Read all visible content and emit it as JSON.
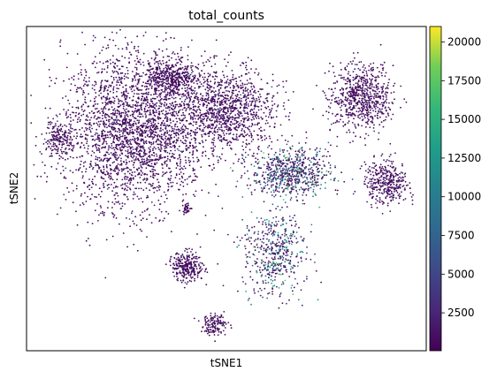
{
  "chart_data": {
    "type": "scatter",
    "title": "total_counts",
    "xlabel": "tSNE1",
    "ylabel": "tSNE2",
    "grid": false,
    "colorbar": {
      "label": "",
      "colormap": "viridis",
      "range": [
        50,
        21000
      ],
      "ticks": [
        "2500",
        "5000",
        "7500",
        "10000",
        "12500",
        "15000",
        "17500",
        "20000"
      ]
    },
    "clusters": [
      {
        "id": "left-large-mass",
        "cx": 0.27,
        "cy": 0.68,
        "rx": 0.16,
        "ry": 0.22,
        "n": 2600,
        "level": "low"
      },
      {
        "id": "left-upper-blob",
        "cx": 0.36,
        "cy": 0.84,
        "rx": 0.06,
        "ry": 0.05,
        "n": 420,
        "level": "low"
      },
      {
        "id": "left-far-blob",
        "cx": 0.08,
        "cy": 0.65,
        "rx": 0.03,
        "ry": 0.05,
        "n": 180,
        "level": "low"
      },
      {
        "id": "top-right-left-mass",
        "cx": 0.5,
        "cy": 0.74,
        "rx": 0.11,
        "ry": 0.12,
        "n": 1100,
        "level": "low"
      },
      {
        "id": "right-top-blob",
        "cx": 0.84,
        "cy": 0.78,
        "rx": 0.07,
        "ry": 0.09,
        "n": 700,
        "level": "low"
      },
      {
        "id": "right-mid-blob",
        "cx": 0.9,
        "cy": 0.52,
        "rx": 0.05,
        "ry": 0.06,
        "n": 380,
        "level": "low"
      },
      {
        "id": "center-mixed",
        "cx": 0.66,
        "cy": 0.55,
        "rx": 0.09,
        "ry": 0.07,
        "n": 700,
        "level": "mixed"
      },
      {
        "id": "center-low-tail",
        "cx": 0.62,
        "cy": 0.3,
        "rx": 0.07,
        "ry": 0.12,
        "n": 500,
        "level": "mixed"
      },
      {
        "id": "bottom-left-blob",
        "cx": 0.4,
        "cy": 0.26,
        "rx": 0.04,
        "ry": 0.04,
        "n": 280,
        "level": "low"
      },
      {
        "id": "bottom-blob",
        "cx": 0.47,
        "cy": 0.08,
        "rx": 0.03,
        "ry": 0.03,
        "n": 140,
        "level": "low"
      },
      {
        "id": "small-isolated",
        "cx": 0.4,
        "cy": 0.44,
        "rx": 0.01,
        "ry": 0.015,
        "n": 40,
        "level": "low"
      }
    ]
  }
}
